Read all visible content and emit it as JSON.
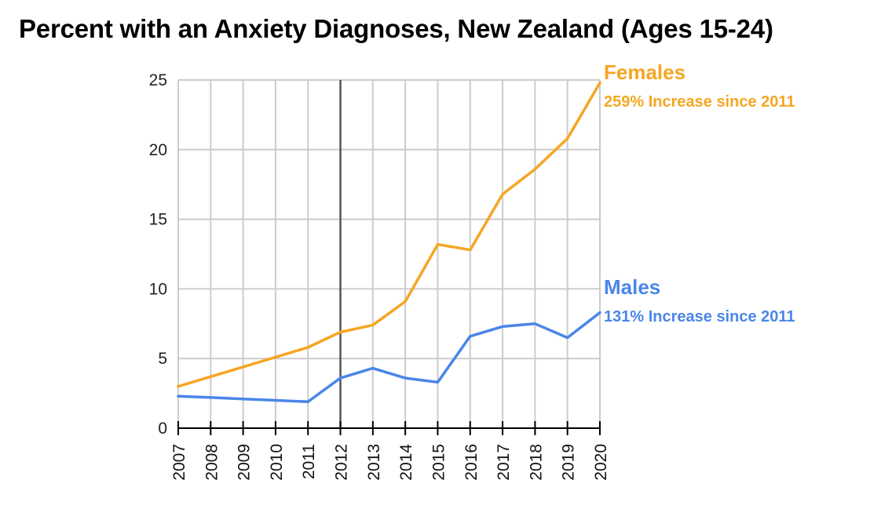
{
  "chart_data": {
    "type": "line",
    "title": "Percent with an Anxiety Diagnoses, New Zealand (Ages 15-24)",
    "xlabel": "",
    "ylabel": "",
    "x": [
      2007,
      2008,
      2009,
      2010,
      2011,
      2012,
      2013,
      2014,
      2015,
      2016,
      2017,
      2018,
      2019,
      2020
    ],
    "ylim": [
      0,
      25
    ],
    "y_ticks": [
      0,
      5,
      10,
      15,
      20,
      25
    ],
    "grid": true,
    "marker_line_x": 2012,
    "series": [
      {
        "name": "Females",
        "note": "259% Increase since 2011",
        "color": "#F5A623",
        "values": [
          3.0,
          3.7,
          4.4,
          5.1,
          5.8,
          6.9,
          7.4,
          9.1,
          13.2,
          12.8,
          16.8,
          18.6,
          20.8,
          24.8
        ]
      },
      {
        "name": "Males",
        "note": "131% Increase since 2011",
        "color": "#4A86E8",
        "values": [
          2.3,
          2.2,
          2.1,
          2.0,
          1.9,
          3.6,
          4.3,
          3.6,
          3.3,
          6.6,
          7.3,
          7.5,
          6.5,
          8.3
        ]
      }
    ]
  }
}
